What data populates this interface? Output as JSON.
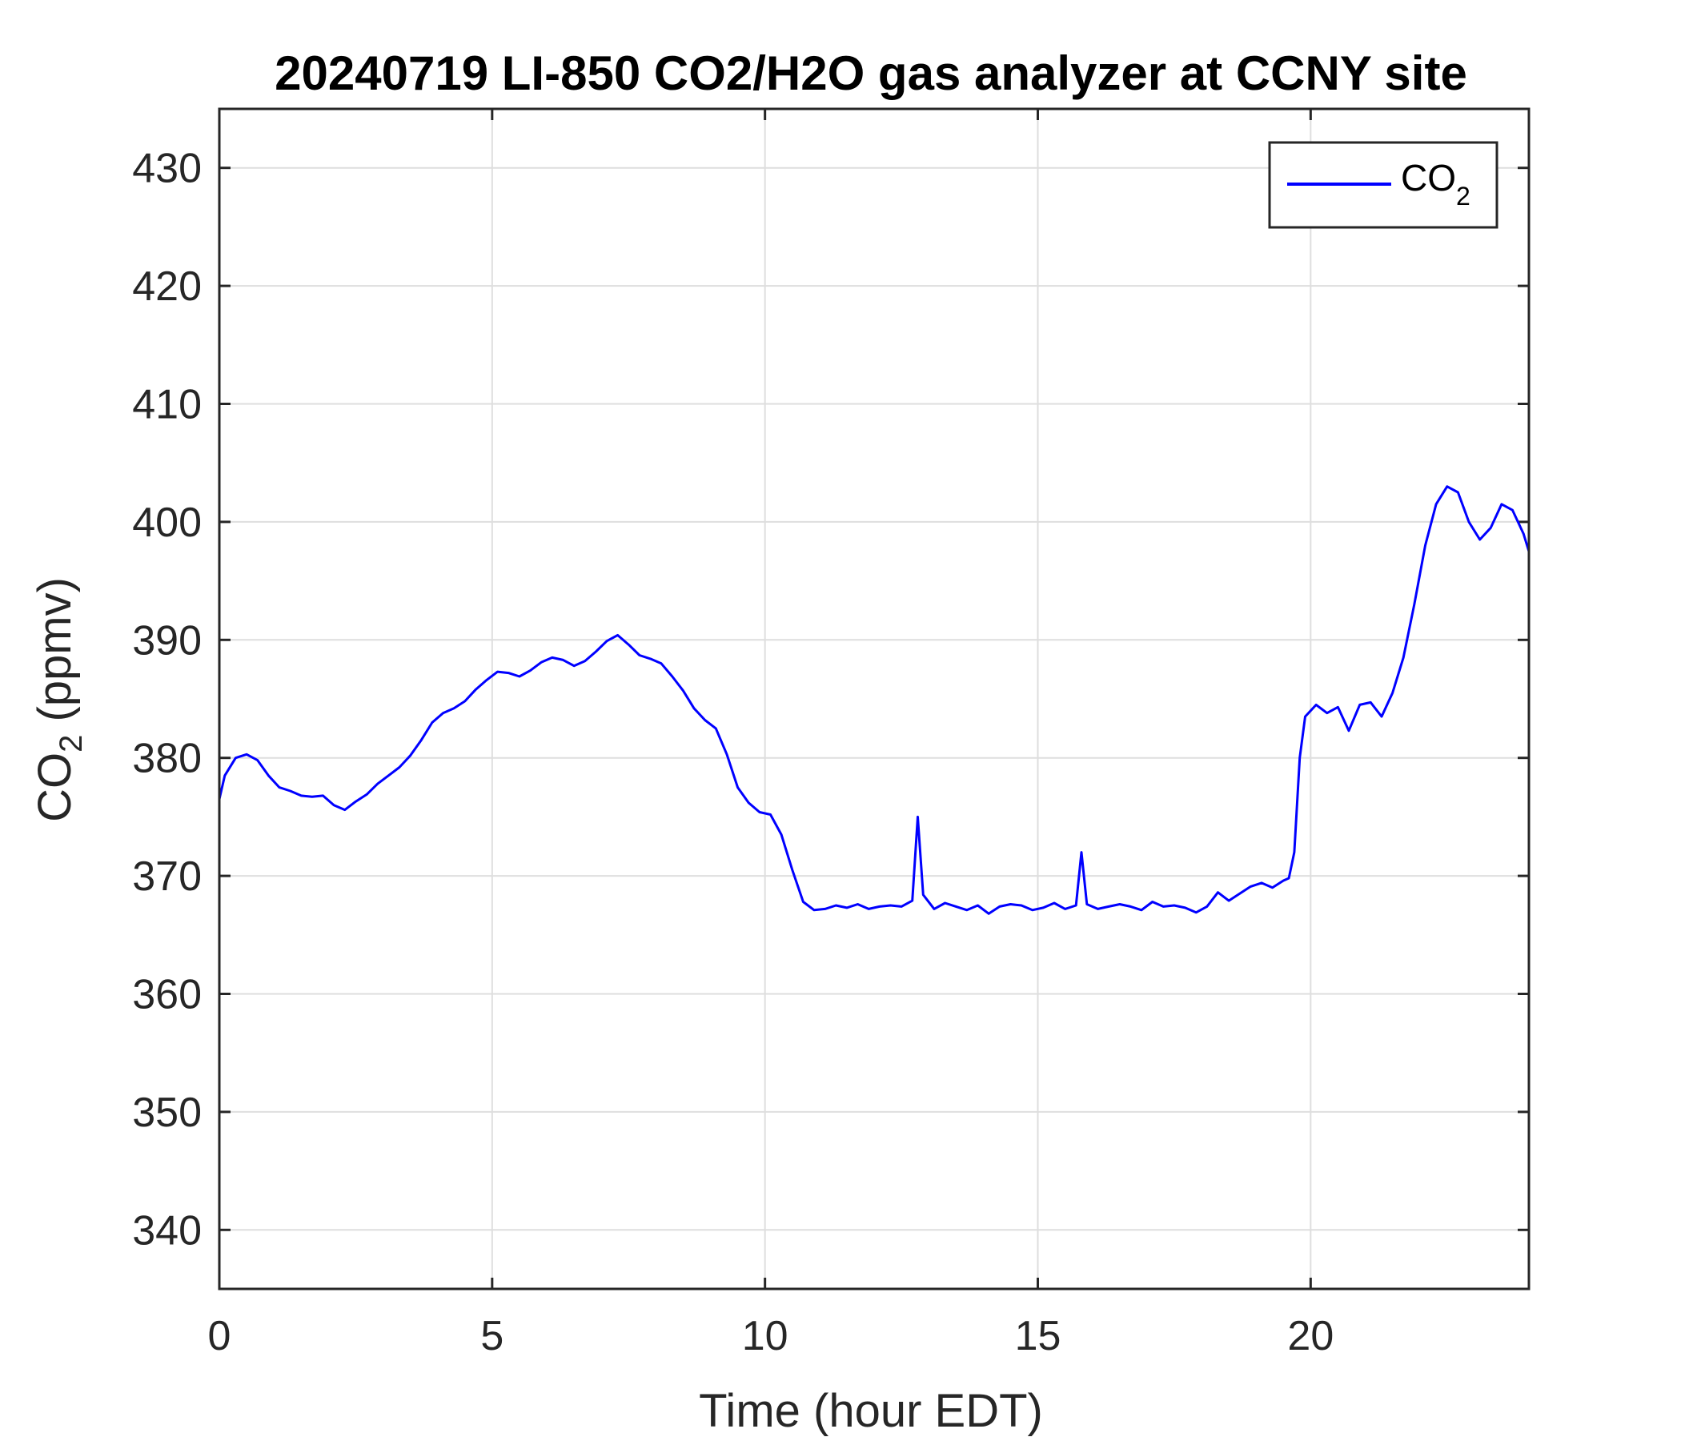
{
  "chart_data": {
    "type": "line",
    "title": "20240719 LI-850 CO2/H2O gas analyzer at CCNY site",
    "xlabel": "Time (hour EDT)",
    "ylabel": {
      "base": "CO",
      "sub": "2",
      "rest": " (ppmv)"
    },
    "xlim": [
      0,
      24
    ],
    "ylim": [
      335,
      435
    ],
    "xticks": [
      0,
      5,
      10,
      15,
      20
    ],
    "yticks": [
      340,
      350,
      360,
      370,
      380,
      390,
      400,
      410,
      420,
      430
    ],
    "grid": true,
    "legend_position": "top-right",
    "legend": {
      "base": "CO",
      "sub": "2"
    },
    "series": [
      {
        "name": "CO2",
        "color": "#0000ff",
        "x": [
          0.0,
          0.1,
          0.3,
          0.5,
          0.7,
          0.9,
          1.1,
          1.3,
          1.5,
          1.7,
          1.9,
          2.1,
          2.3,
          2.5,
          2.7,
          2.9,
          3.1,
          3.3,
          3.5,
          3.7,
          3.9,
          4.1,
          4.3,
          4.5,
          4.7,
          4.9,
          5.1,
          5.3,
          5.5,
          5.7,
          5.9,
          6.1,
          6.3,
          6.5,
          6.7,
          6.9,
          7.1,
          7.3,
          7.5,
          7.7,
          7.9,
          8.1,
          8.3,
          8.5,
          8.7,
          8.9,
          9.1,
          9.3,
          9.5,
          9.7,
          9.9,
          10.1,
          10.3,
          10.5,
          10.7,
          10.9,
          11.1,
          11.3,
          11.5,
          11.7,
          11.9,
          12.1,
          12.3,
          12.5,
          12.7,
          12.8,
          12.9,
          13.1,
          13.3,
          13.5,
          13.7,
          13.9,
          14.1,
          14.3,
          14.5,
          14.7,
          14.9,
          15.1,
          15.3,
          15.5,
          15.7,
          15.8,
          15.9,
          16.1,
          16.3,
          16.5,
          16.7,
          16.9,
          17.1,
          17.3,
          17.5,
          17.7,
          17.9,
          18.1,
          18.3,
          18.5,
          18.7,
          18.9,
          19.1,
          19.3,
          19.5,
          19.6,
          19.7,
          19.8,
          19.9,
          20.1,
          20.3,
          20.5,
          20.7,
          20.9,
          21.1,
          21.3,
          21.5,
          21.7,
          21.9,
          22.1,
          22.3,
          22.5,
          22.7,
          22.9,
          23.1,
          23.3,
          23.5,
          23.7,
          23.9,
          24.0
        ],
        "y": [
          376.5,
          378.5,
          380.0,
          380.3,
          379.8,
          378.5,
          377.5,
          377.2,
          376.8,
          376.7,
          376.8,
          376.0,
          375.6,
          376.3,
          376.9,
          377.8,
          378.5,
          379.2,
          380.2,
          381.5,
          383.0,
          383.8,
          384.2,
          384.8,
          385.8,
          386.6,
          387.3,
          387.2,
          386.9,
          387.4,
          388.1,
          388.5,
          388.3,
          387.8,
          388.2,
          389.0,
          389.9,
          390.4,
          389.6,
          388.7,
          388.4,
          388.0,
          386.9,
          385.7,
          384.2,
          383.2,
          382.5,
          380.3,
          377.5,
          376.2,
          375.4,
          375.2,
          373.5,
          370.5,
          367.8,
          367.1,
          367.2,
          367.5,
          367.3,
          367.6,
          367.2,
          367.4,
          367.5,
          367.4,
          367.9,
          375.0,
          368.4,
          367.2,
          367.7,
          367.4,
          367.1,
          367.5,
          366.8,
          367.4,
          367.6,
          367.5,
          367.1,
          367.3,
          367.7,
          367.2,
          367.5,
          372.0,
          367.6,
          367.2,
          367.4,
          367.6,
          367.4,
          367.1,
          367.8,
          367.4,
          367.5,
          367.3,
          366.9,
          367.4,
          368.6,
          367.9,
          368.5,
          369.1,
          369.4,
          369.0,
          369.6,
          369.8,
          372.0,
          380.0,
          383.5,
          384.5,
          383.8,
          384.3,
          382.3,
          384.5,
          384.7,
          383.5,
          385.5,
          388.5,
          393.0,
          398.0,
          401.5,
          403.0,
          402.5,
          400.0,
          398.5,
          399.5,
          401.5,
          401.0,
          399.0,
          397.5
        ]
      }
    ]
  }
}
